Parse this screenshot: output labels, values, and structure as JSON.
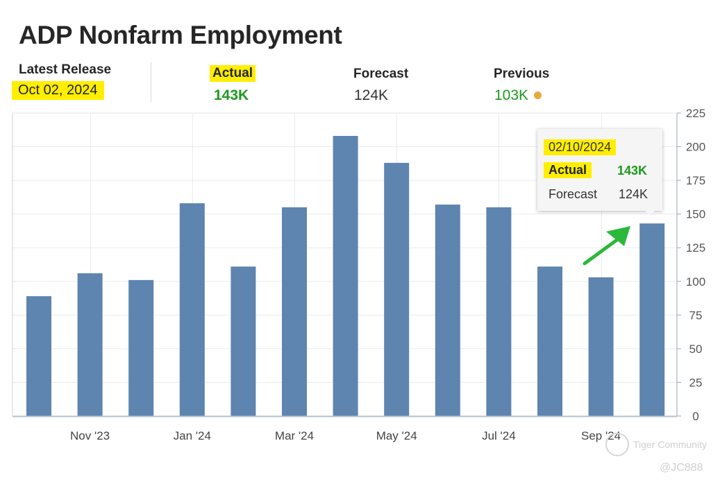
{
  "header": {
    "title": "ADP Nonfarm Employment",
    "latest_release_label": "Latest Release",
    "latest_release_date": "Oct 02, 2024",
    "actual_label": "Actual",
    "actual_value": "143K",
    "forecast_label": "Forecast",
    "forecast_value": "124K",
    "previous_label": "Previous",
    "previous_value": "103K"
  },
  "colors": {
    "bar": "#5e84b0",
    "positive": "#1d9a1d",
    "highlight": "#ffee00",
    "previous_dot": "#e8a93a",
    "arrow": "#2cb83a"
  },
  "tooltip": {
    "date": "02/10/2024",
    "actual_label": "Actual",
    "actual_value": "143K",
    "forecast_label": "Forecast",
    "forecast_value": "124K"
  },
  "watermark": {
    "brand": "Tiger Community",
    "handle": "@JC888"
  },
  "chart_data": {
    "type": "bar",
    "categories": [
      "Oct '23",
      "Nov '23",
      "Dec '23",
      "Jan '24",
      "Feb '24",
      "Mar '24",
      "Apr '24",
      "May '24",
      "Jun '24",
      "Jul '24",
      "Aug '24",
      "Sep '24",
      "Oct '24"
    ],
    "values": [
      89,
      106,
      101,
      158,
      111,
      155,
      208,
      188,
      157,
      155,
      111,
      103,
      143
    ],
    "x_tick_labels": [
      "",
      "Nov '23",
      "",
      "Jan '24",
      "",
      "Mar '24",
      "",
      "May '24",
      "",
      "Jul '24",
      "",
      "Sep '24",
      ""
    ],
    "y_ticks": [
      0,
      25,
      50,
      75,
      100,
      125,
      150,
      175,
      200,
      225
    ],
    "ylim": [
      0,
      225
    ],
    "axis_position": "right",
    "grid": true
  }
}
